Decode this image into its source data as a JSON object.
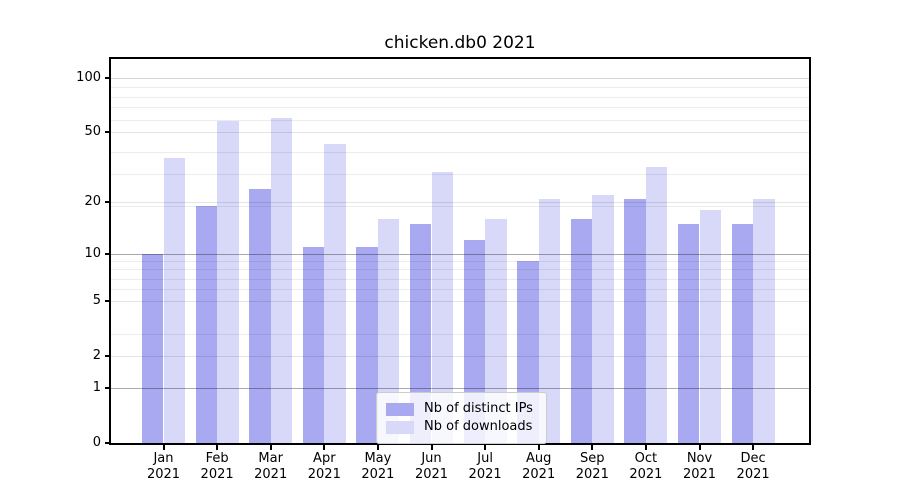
{
  "title": "chicken.db0 2021",
  "chart_data": {
    "type": "bar",
    "title": "chicken.db0 2021",
    "categories": [
      "Jan",
      "Feb",
      "Mar",
      "Apr",
      "May",
      "Jun",
      "Jul",
      "Aug",
      "Sep",
      "Oct",
      "Nov",
      "Dec"
    ],
    "x_year": "2021",
    "series": [
      {
        "name": "Nb of distinct IPs",
        "color": "#a9a9f2",
        "values": [
          10,
          19,
          24,
          11,
          11,
          15,
          12,
          9,
          16,
          21,
          15,
          15
        ]
      },
      {
        "name": "Nb of downloads",
        "color": "#d8d8f9",
        "values": [
          36,
          58,
          60,
          43,
          16,
          30,
          16,
          21,
          22,
          32,
          18,
          21
        ]
      }
    ],
    "yscale": "log1p",
    "ylim": [
      0,
      128
    ],
    "yticks": [
      0,
      1,
      2,
      5,
      10,
      20,
      50,
      100
    ],
    "ytick_labels": [
      "0",
      "1",
      "2",
      "5",
      "10",
      "20",
      "50",
      "100"
    ],
    "y_gridlines": {
      "dark": [
        1,
        10
      ],
      "medium": [
        100
      ],
      "light": [
        2,
        5,
        20,
        50
      ],
      "minor": [
        3,
        6,
        7,
        8,
        9,
        19,
        29,
        39,
        59,
        69,
        79,
        89
      ]
    },
    "grid": true,
    "legend_position": "lower center"
  }
}
